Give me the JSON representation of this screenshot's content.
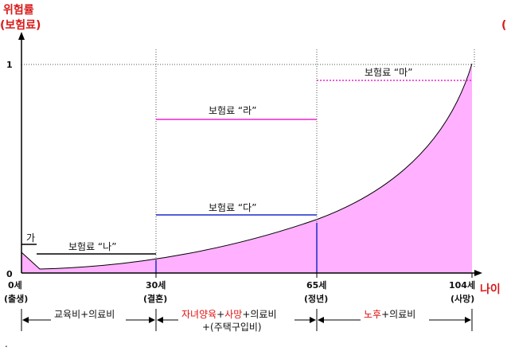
{
  "y_axis": {
    "title_line1": "위험률",
    "title_line2": "(보험료)",
    "tick_top": "1",
    "tick_zero": "0"
  },
  "x_axis": {
    "title": "나이",
    "ticks": [
      {
        "age": "0세",
        "event": "(출생)"
      },
      {
        "age": "30세",
        "event": "(결혼)"
      },
      {
        "age": "65세",
        "event": "(정년)"
      },
      {
        "age": "104세",
        "event": "(사망)"
      }
    ]
  },
  "premiums": {
    "ga": "가",
    "na": "보험료 “나”",
    "da": "보험료 “다”",
    "ra": "보험료 “라”",
    "ma": "보험료 “마”"
  },
  "periods": {
    "p1": "교육비+의료비",
    "p2_red1": "자녀양육",
    "p2_plus1": "+",
    "p2_red2": "사망",
    "p2_rest": "+의료비",
    "p2_line2": "+(주택구입비)",
    "p3_red": "노후",
    "p3_rest": "+의료비"
  },
  "top_right_fragment": "(",
  "bottom_left_fragment": ".",
  "colors": {
    "curve_fill": "#ffb0ff",
    "curve_stroke": "#000000",
    "ra_line": "#ee22cc",
    "da_line": "#1a2ccc",
    "ma_line": "#ee22cc",
    "axis_title": "#d81b1b"
  },
  "chart_data": {
    "type": "area",
    "description_of_axes": {
      "x": "age",
      "y": "risk rate (premium)"
    },
    "x_ticks": [
      0,
      30,
      65,
      104
    ],
    "ylim": [
      0,
      1
    ],
    "premium_levels": {
      "ga": {
        "from_age": 0,
        "to_age": 0,
        "y": 0.14
      },
      "na": {
        "from_age": 3,
        "to_age": 30,
        "y": 0.11
      },
      "da": {
        "from_age": 30,
        "to_age": 65,
        "y": 0.27
      },
      "ra": {
        "from_age": 30,
        "to_age": 65,
        "y": 0.74
      },
      "ma": {
        "from_age": 65,
        "to_age": 104,
        "y": 0.92
      }
    },
    "grid": false
  }
}
